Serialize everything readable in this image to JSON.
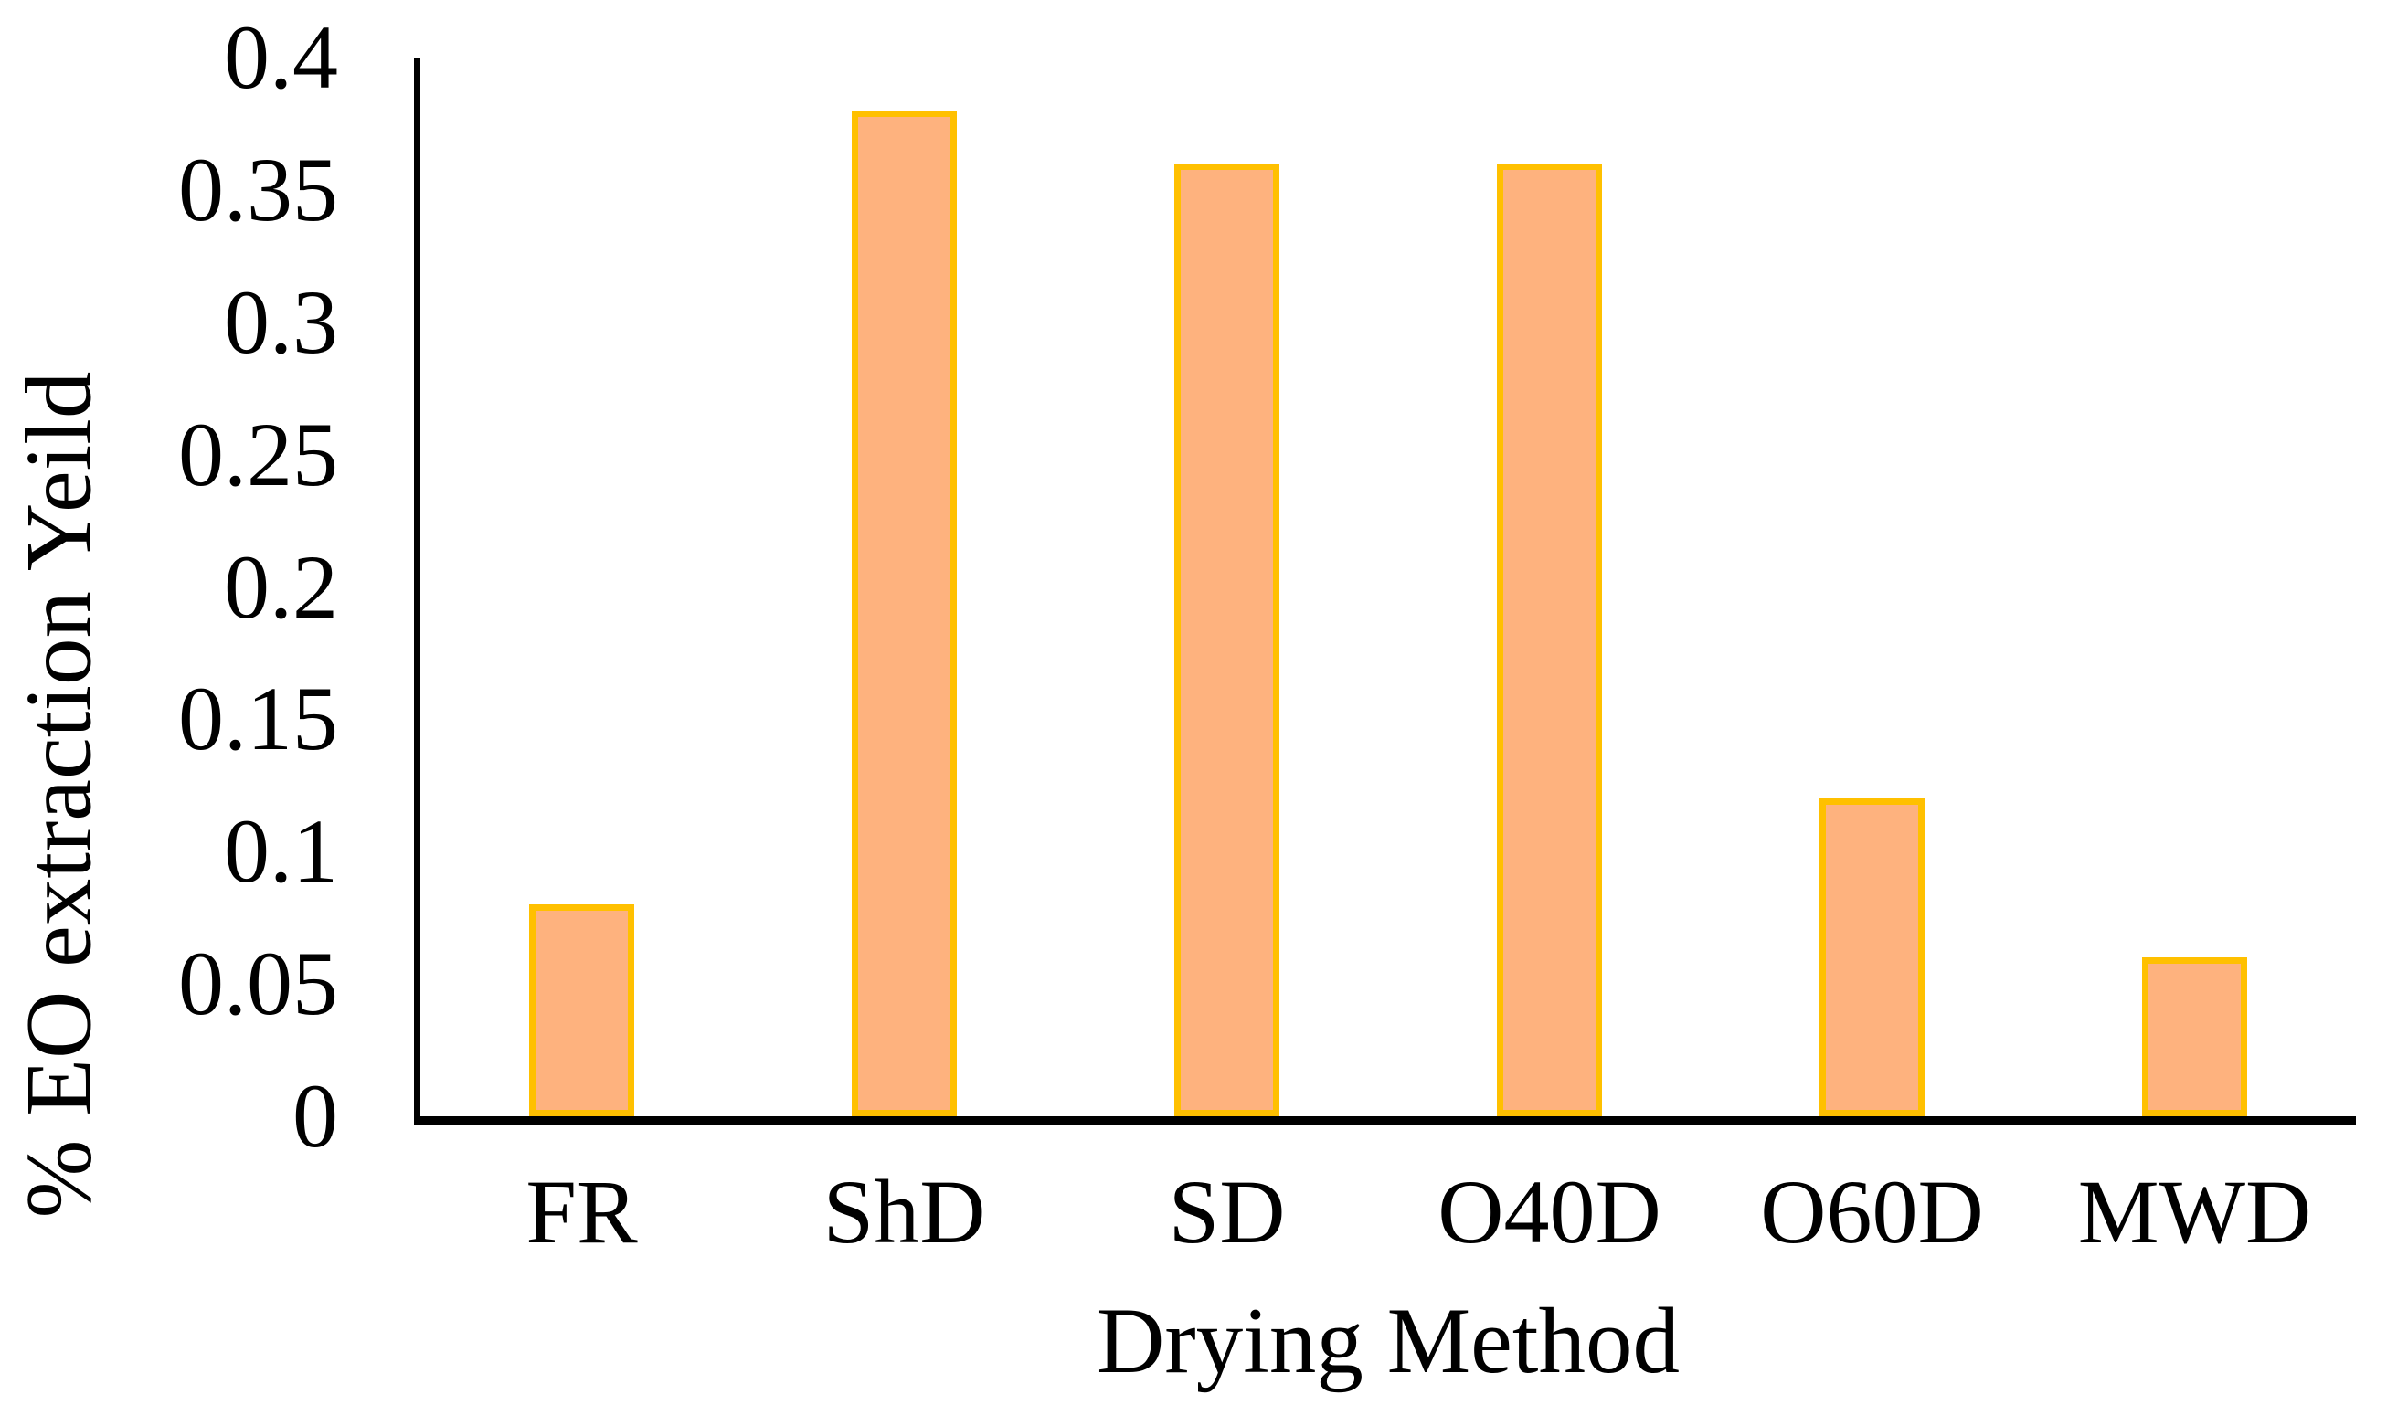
{
  "chart_data": {
    "type": "bar",
    "categories": [
      "FR",
      "ShD",
      "SD",
      "O40D",
      "O60D",
      "MWD"
    ],
    "values": [
      0.08,
      0.38,
      0.36,
      0.36,
      0.12,
      0.06
    ],
    "title": "",
    "xlabel": "Drying Method",
    "ylabel": "% EO extraction Yeild",
    "ylim": [
      0,
      0.4
    ],
    "ytick_step": 0.05,
    "ytick_labels": [
      "0",
      "0.05",
      "0.1",
      "0.15",
      "0.2",
      "0.25",
      "0.3",
      "0.35",
      "0.4"
    ],
    "grid": false,
    "legend_position": "none",
    "bar_fill_color": "#FEB27E",
    "bar_border_color": "#FFC000",
    "axis_color": "#000000",
    "background_color": "#FFFFFF"
  }
}
